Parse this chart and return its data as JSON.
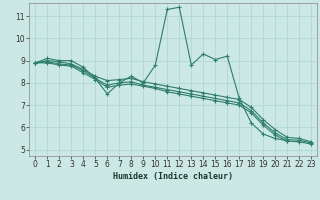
{
  "xlabel": "Humidex (Indice chaleur)",
  "bg_color": "#cce8e4",
  "grid_color": "#b0d8d2",
  "line_color": "#2e7d6e",
  "xlim": [
    -0.5,
    23.5
  ],
  "ylim": [
    4.7,
    11.6
  ],
  "xticks": [
    0,
    1,
    2,
    3,
    4,
    5,
    6,
    7,
    8,
    9,
    10,
    11,
    12,
    13,
    14,
    15,
    16,
    17,
    18,
    19,
    20,
    21,
    22,
    23
  ],
  "yticks": [
    5,
    6,
    7,
    8,
    9,
    10,
    11
  ],
  "series": {
    "s0": {
      "x": [
        0,
        1,
        2,
        3,
        4,
        5,
        6,
        7,
        8,
        9,
        10,
        11,
        12,
        13,
        14,
        15,
        16,
        17,
        18,
        19,
        20,
        21
      ],
      "y": [
        8.9,
        9.1,
        9.0,
        9.0,
        8.7,
        8.2,
        7.5,
        8.0,
        8.3,
        8.0,
        8.8,
        11.3,
        11.4,
        8.8,
        9.3,
        9.05,
        9.2,
        7.3,
        6.2,
        5.7,
        5.5,
        5.4
      ]
    },
    "s1": {
      "x": [
        0,
        1,
        2,
        3,
        4,
        5,
        6,
        7,
        8,
        9,
        10,
        11,
        12,
        13,
        14,
        15,
        16,
        17,
        18,
        19,
        20,
        21,
        22,
        23
      ],
      "y": [
        8.9,
        9.0,
        8.95,
        8.85,
        8.6,
        8.3,
        8.1,
        8.15,
        8.2,
        8.05,
        7.95,
        7.85,
        7.75,
        7.65,
        7.55,
        7.45,
        7.35,
        7.25,
        6.9,
        6.35,
        5.9,
        5.55,
        5.5,
        5.35
      ]
    },
    "s2": {
      "x": [
        0,
        1,
        2,
        3,
        4,
        5,
        6,
        7,
        8,
        9,
        10,
        11,
        12,
        13,
        14,
        15,
        16,
        17,
        18,
        19,
        20,
        21,
        22,
        23
      ],
      "y": [
        8.9,
        8.95,
        8.85,
        8.8,
        8.55,
        8.2,
        7.9,
        8.0,
        8.05,
        7.9,
        7.8,
        7.7,
        7.6,
        7.5,
        7.4,
        7.3,
        7.2,
        7.1,
        6.75,
        6.2,
        5.75,
        5.45,
        5.42,
        5.3
      ]
    },
    "s3": {
      "x": [
        0,
        1,
        2,
        3,
        4,
        5,
        6,
        7,
        8,
        9,
        10,
        11,
        12,
        13,
        14,
        15,
        16,
        17,
        18,
        19,
        20,
        21,
        22,
        23
      ],
      "y": [
        8.9,
        8.9,
        8.8,
        8.75,
        8.45,
        8.15,
        7.8,
        7.9,
        7.95,
        7.85,
        7.75,
        7.6,
        7.5,
        7.4,
        7.3,
        7.2,
        7.1,
        7.0,
        6.65,
        6.1,
        5.65,
        5.38,
        5.35,
        5.25
      ]
    }
  },
  "marker": "+",
  "markersize": 3,
  "linewidth": 0.8
}
